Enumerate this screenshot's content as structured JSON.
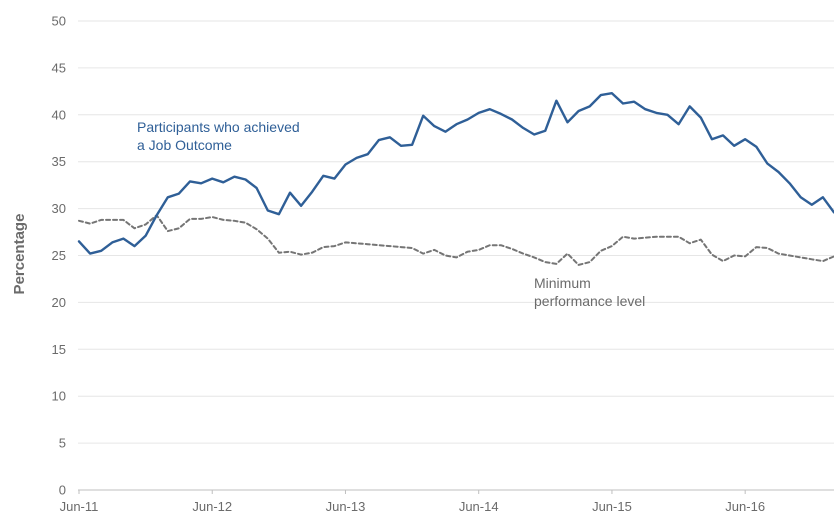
{
  "chart_data": {
    "type": "line",
    "title": "",
    "xlabel": "",
    "ylabel": "Percentage",
    "ylim": [
      0,
      50
    ],
    "yticks": [
      0,
      5,
      10,
      15,
      20,
      25,
      30,
      35,
      40,
      45,
      50
    ],
    "xticks": [
      "Jun-11",
      "Jun-12",
      "Jun-13",
      "Jun-14",
      "Jun-15",
      "Jun-16"
    ],
    "grid": true,
    "legend": "none",
    "series": [
      {
        "name": "Participants who achieved a Job Outcome",
        "label_lines": [
          "Participants who achieved",
          "a Job Outcome"
        ],
        "color": "#2f5f97",
        "style": "solid",
        "values": [
          26.5,
          25.2,
          25.5,
          26.4,
          26.8,
          26.0,
          27.1,
          29.3,
          31.2,
          31.6,
          32.9,
          32.7,
          33.2,
          32.8,
          33.4,
          33.1,
          32.2,
          29.8,
          29.4,
          31.7,
          30.3,
          31.8,
          33.5,
          33.2,
          34.7,
          35.4,
          35.8,
          37.3,
          37.6,
          36.7,
          36.8,
          39.9,
          38.8,
          38.2,
          39.0,
          39.5,
          40.2,
          40.6,
          40.1,
          39.5,
          38.6,
          37.9,
          38.3,
          41.5,
          39.2,
          40.4,
          40.9,
          42.1,
          42.3,
          41.2,
          41.4,
          40.6,
          40.2,
          40.0,
          39.0,
          40.9,
          39.7,
          37.4,
          37.8,
          36.7,
          37.4,
          36.6,
          34.8,
          33.9,
          32.7,
          31.2,
          30.4,
          31.2,
          29.6
        ]
      },
      {
        "name": "Minimum performance level",
        "label_lines": [
          "Minimum",
          "performance level"
        ],
        "color": "#757575",
        "style": "dashed",
        "values": [
          28.7,
          28.4,
          28.8,
          28.8,
          28.8,
          27.9,
          28.3,
          29.3,
          27.6,
          27.9,
          28.9,
          28.9,
          29.1,
          28.8,
          28.7,
          28.5,
          27.8,
          26.8,
          25.3,
          25.4,
          25.1,
          25.3,
          25.9,
          26.0,
          26.4,
          26.3,
          26.2,
          26.1,
          26.0,
          25.9,
          25.8,
          25.2,
          25.6,
          25.0,
          24.8,
          25.4,
          25.6,
          26.1,
          26.1,
          25.7,
          25.2,
          24.8,
          24.3,
          24.1,
          25.2,
          24.0,
          24.3,
          25.5,
          26.0,
          27.0,
          26.8,
          26.9,
          27.0,
          27.0,
          27.0,
          26.3,
          26.7,
          25.1,
          24.4,
          25.0,
          24.9,
          25.9,
          25.8,
          25.2,
          25.0,
          24.8,
          24.6,
          24.4,
          24.9,
          24.4
        ]
      }
    ]
  }
}
